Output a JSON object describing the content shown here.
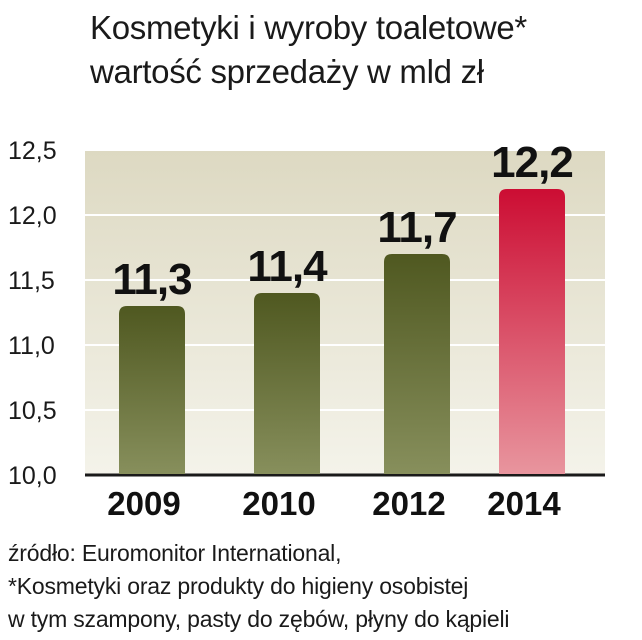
{
  "header": {
    "title_line1": "Kosmetyki i wyroby toaletowe*",
    "title_line2": "wartość sprzedaży w mld zł"
  },
  "chart_data": {
    "type": "bar",
    "categories": [
      "2009",
      "2010",
      "2012",
      "2014"
    ],
    "values": [
      11.3,
      11.4,
      11.7,
      12.2
    ],
    "value_labels": [
      "11,3",
      "11,4",
      "11,7",
      "12,2"
    ],
    "y_ticks": [
      "10,0",
      "10,5",
      "11,0",
      "11,5",
      "12,0",
      "12,5"
    ],
    "y_tick_values": [
      10.0,
      10.5,
      11.0,
      11.5,
      12.0,
      12.5
    ],
    "ylim": [
      10.0,
      12.5
    ],
    "grid": true,
    "colors": {
      "default_bar": "#5a6224",
      "highlight_bar": "#d0143a",
      "background": "#e9e7d6"
    },
    "highlight_index": 3
  },
  "footer": {
    "source": "źródło: Euromonitor International,",
    "note_line1": "*Kosmetyki oraz produkty do higieny osobistej",
    "note_line2": "w tym szampony, pasty do zębów, płyny do kąpieli"
  }
}
